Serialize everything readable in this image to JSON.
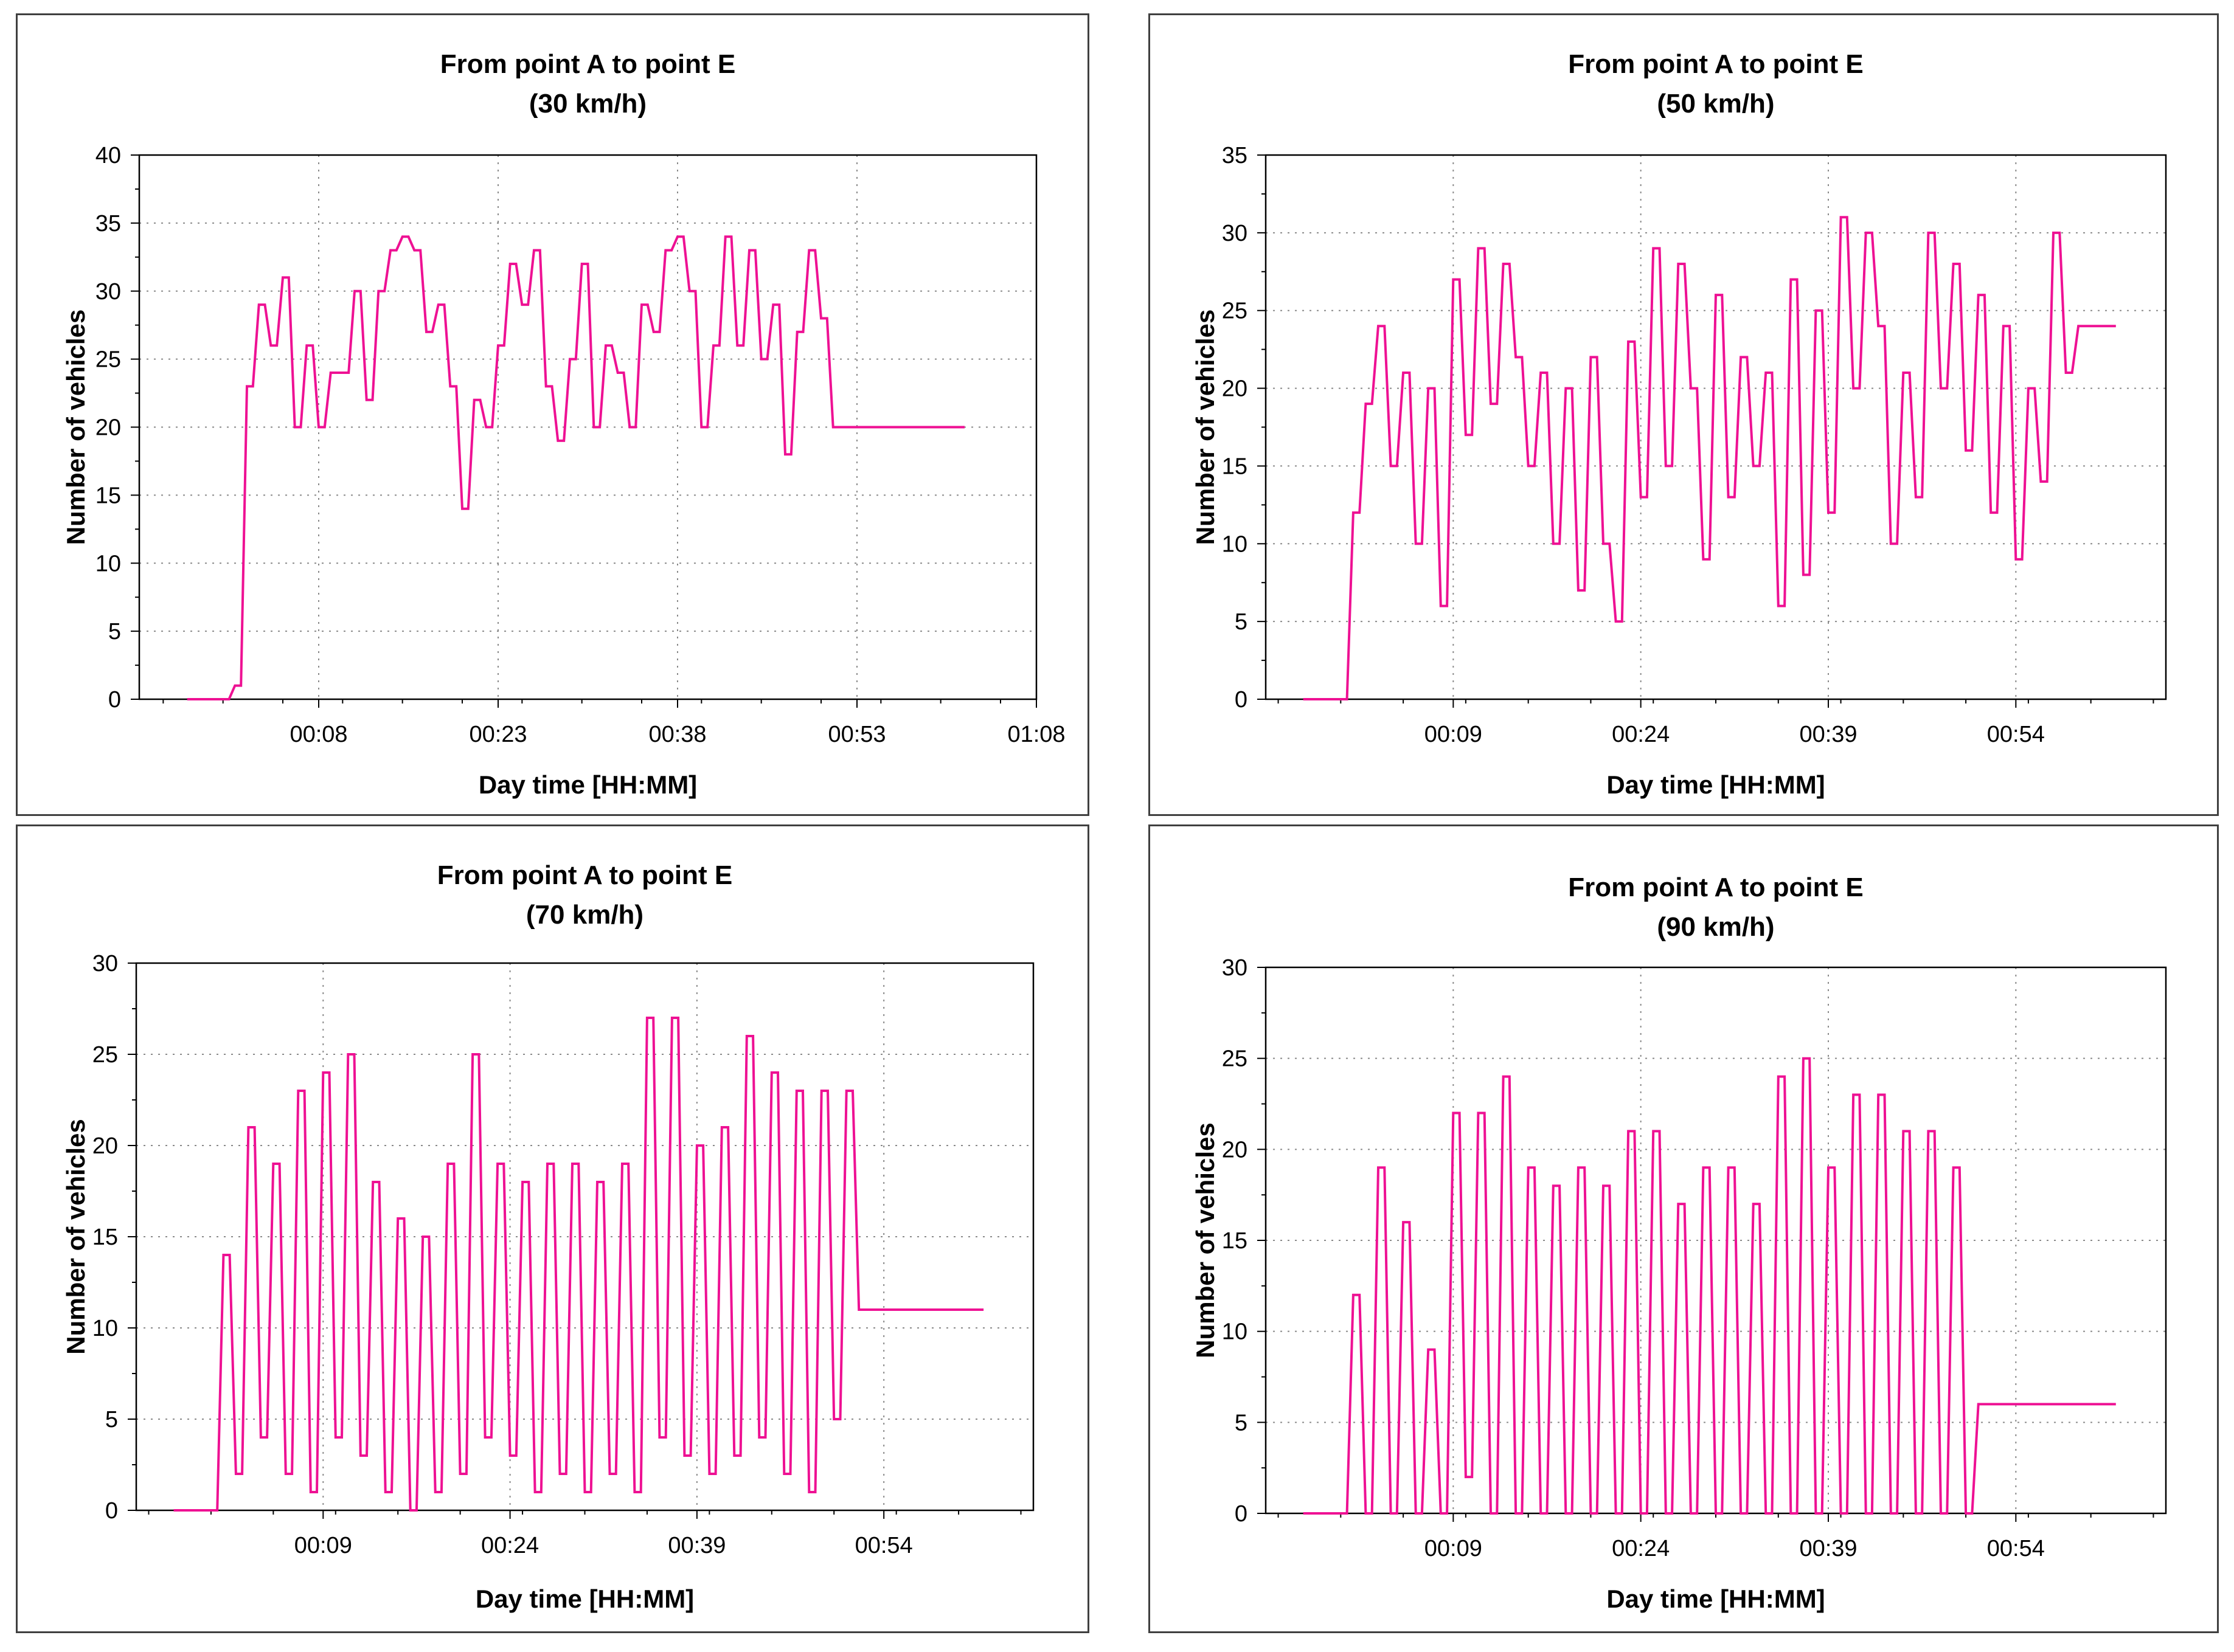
{
  "colors": {
    "series": "#ee1193",
    "grid": "#8a8a8a",
    "axis": "#000000"
  },
  "chart_data": [
    {
      "type": "line",
      "title": "From point A to point E",
      "subtitle": "(30 km/h)",
      "xlabel": "Day time [HH:MM]",
      "ylabel": "Number of vehicles",
      "ylim": [
        0,
        40
      ],
      "yticks": [
        0,
        5,
        10,
        15,
        20,
        25,
        30,
        35,
        40
      ],
      "xlim": [
        -7,
        68
      ],
      "xticks": [
        8,
        23,
        38,
        53,
        68
      ],
      "xticklabels": [
        "00:08",
        "00:23",
        "00:38",
        "00:53",
        "01:08"
      ],
      "grid": true,
      "series": [
        {
          "name": "Number of vehicles",
          "x": [
            0,
            1,
            2,
            3,
            4,
            5,
            6,
            7,
            8,
            9,
            10,
            11,
            12,
            13,
            14,
            15,
            16,
            17,
            18,
            19,
            20,
            21,
            22,
            23,
            24,
            25,
            26,
            27,
            28,
            29,
            30,
            31,
            32,
            33,
            34,
            35,
            36,
            37,
            38,
            39,
            40,
            41,
            42,
            43,
            44,
            45,
            46,
            47,
            48,
            49,
            50,
            51,
            52,
            53,
            54,
            55,
            56,
            57,
            58,
            59,
            60,
            61,
            62
          ],
          "values": [
            0,
            1,
            23,
            29,
            26,
            31,
            20,
            26,
            20,
            24,
            24,
            30,
            22,
            30,
            33,
            34,
            33,
            27,
            29,
            23,
            14,
            22,
            20,
            26,
            32,
            29,
            33,
            23,
            19,
            25,
            32,
            20,
            26,
            24,
            20,
            29,
            27,
            33,
            34,
            30,
            20,
            26,
            34,
            26,
            33,
            25,
            29,
            18,
            27,
            33,
            28,
            20,
            20,
            20,
            20,
            20,
            20,
            20,
            20,
            20,
            20,
            20,
            20
          ]
        }
      ]
    },
    {
      "type": "line",
      "title": "From point A to point E",
      "subtitle": "(50 km/h)",
      "xlabel": "Day time [HH:MM]",
      "ylabel": "Number of vehicles",
      "ylim": [
        0,
        35
      ],
      "yticks": [
        0,
        5,
        10,
        15,
        20,
        25,
        30,
        35
      ],
      "xlim": [
        -6,
        66
      ],
      "xticks": [
        9,
        24,
        39,
        54
      ],
      "xticklabels": [
        "00:09",
        "00:24",
        "00:39",
        "00:54"
      ],
      "grid": true,
      "series": [
        {
          "name": "Number of vehicles",
          "x": [
            0,
            1,
            2,
            3,
            4,
            5,
            6,
            7,
            8,
            9,
            10,
            11,
            12,
            13,
            14,
            15,
            16,
            17,
            18,
            19,
            20,
            21,
            22,
            23,
            24,
            25,
            26,
            27,
            28,
            29,
            30,
            31,
            32,
            33,
            34,
            35,
            36,
            37,
            38,
            39,
            40,
            41,
            42,
            43,
            44,
            45,
            46,
            47,
            48,
            49,
            50,
            51,
            52,
            53,
            54,
            55,
            56,
            57,
            58,
            59,
            60,
            61,
            62
          ],
          "values": [
            0,
            12,
            19,
            24,
            15,
            21,
            10,
            20,
            6,
            27,
            17,
            29,
            19,
            28,
            22,
            15,
            21,
            10,
            20,
            7,
            22,
            10,
            5,
            23,
            13,
            29,
            15,
            28,
            20,
            9,
            26,
            13,
            22,
            15,
            21,
            6,
            27,
            8,
            25,
            12,
            31,
            20,
            30,
            24,
            10,
            21,
            13,
            30,
            20,
            28,
            16,
            26,
            12,
            24,
            9,
            20,
            14,
            30,
            21,
            24,
            24,
            24,
            24
          ]
        }
      ]
    },
    {
      "type": "line",
      "title": "From point A to point E",
      "subtitle": "(70 km/h)",
      "xlabel": "Day time [HH:MM]",
      "ylabel": "Number of vehicles",
      "ylim": [
        0,
        30
      ],
      "yticks": [
        0,
        5,
        10,
        15,
        20,
        25,
        30
      ],
      "xlim": [
        -6,
        66
      ],
      "xticks": [
        9,
        24,
        39,
        54
      ],
      "xticklabels": [
        "00:09",
        "00:24",
        "00:39",
        "00:54"
      ],
      "grid": true,
      "series": [
        {
          "name": "Number of vehicles",
          "x": [
            0,
            1,
            2,
            3,
            4,
            5,
            6,
            7,
            8,
            9,
            10,
            11,
            12,
            13,
            14,
            15,
            16,
            17,
            18,
            19,
            20,
            21,
            22,
            23,
            24,
            25,
            26,
            27,
            28,
            29,
            30,
            31,
            32,
            33,
            34,
            35,
            36,
            37,
            38,
            39,
            40,
            41,
            42,
            43,
            44,
            45,
            46,
            47,
            48,
            49,
            50,
            51,
            52,
            53,
            54,
            55,
            56,
            57,
            58,
            59,
            60,
            61,
            62
          ],
          "values": [
            0,
            14,
            2,
            21,
            4,
            19,
            2,
            23,
            1,
            24,
            4,
            25,
            3,
            18,
            1,
            16,
            0,
            15,
            1,
            19,
            2,
            25,
            4,
            19,
            3,
            18,
            1,
            19,
            2,
            19,
            1,
            18,
            2,
            19,
            1,
            27,
            4,
            27,
            3,
            20,
            2,
            21,
            3,
            26,
            4,
            24,
            2,
            23,
            1,
            23,
            5,
            23,
            11,
            11,
            11,
            11,
            11,
            11,
            11,
            11,
            11,
            11,
            11
          ]
        }
      ]
    },
    {
      "type": "line",
      "title": "From point A to point E",
      "subtitle": "(90 km/h)",
      "xlabel": "Day time [HH:MM]",
      "ylabel": "Number of vehicles",
      "ylim": [
        0,
        30
      ],
      "yticks": [
        0,
        5,
        10,
        15,
        20,
        25,
        30
      ],
      "xlim": [
        -6,
        66
      ],
      "xticks": [
        9,
        24,
        39,
        54
      ],
      "xticklabels": [
        "00:09",
        "00:24",
        "00:39",
        "00:54"
      ],
      "grid": true,
      "series": [
        {
          "name": "Number of vehicles",
          "x": [
            0,
            1,
            2,
            3,
            4,
            5,
            6,
            7,
            8,
            9,
            10,
            11,
            12,
            13,
            14,
            15,
            16,
            17,
            18,
            19,
            20,
            21,
            22,
            23,
            24,
            25,
            26,
            27,
            28,
            29,
            30,
            31,
            32,
            33,
            34,
            35,
            36,
            37,
            38,
            39,
            40,
            41,
            42,
            43,
            44,
            45,
            46,
            47,
            48,
            49,
            50,
            51,
            52,
            53,
            54,
            55,
            56,
            57,
            58,
            59,
            60,
            61,
            62
          ],
          "values": [
            0,
            12,
            0,
            19,
            0,
            16,
            0,
            9,
            0,
            22,
            2,
            22,
            0,
            24,
            0,
            19,
            0,
            18,
            0,
            19,
            0,
            18,
            0,
            21,
            0,
            21,
            0,
            17,
            0,
            19,
            0,
            19,
            0,
            17,
            0,
            24,
            0,
            25,
            0,
            19,
            0,
            23,
            0,
            23,
            0,
            21,
            0,
            21,
            0,
            19,
            0,
            6,
            6,
            6,
            6,
            6,
            6,
            6,
            6,
            6,
            6,
            6,
            6
          ]
        }
      ]
    }
  ]
}
